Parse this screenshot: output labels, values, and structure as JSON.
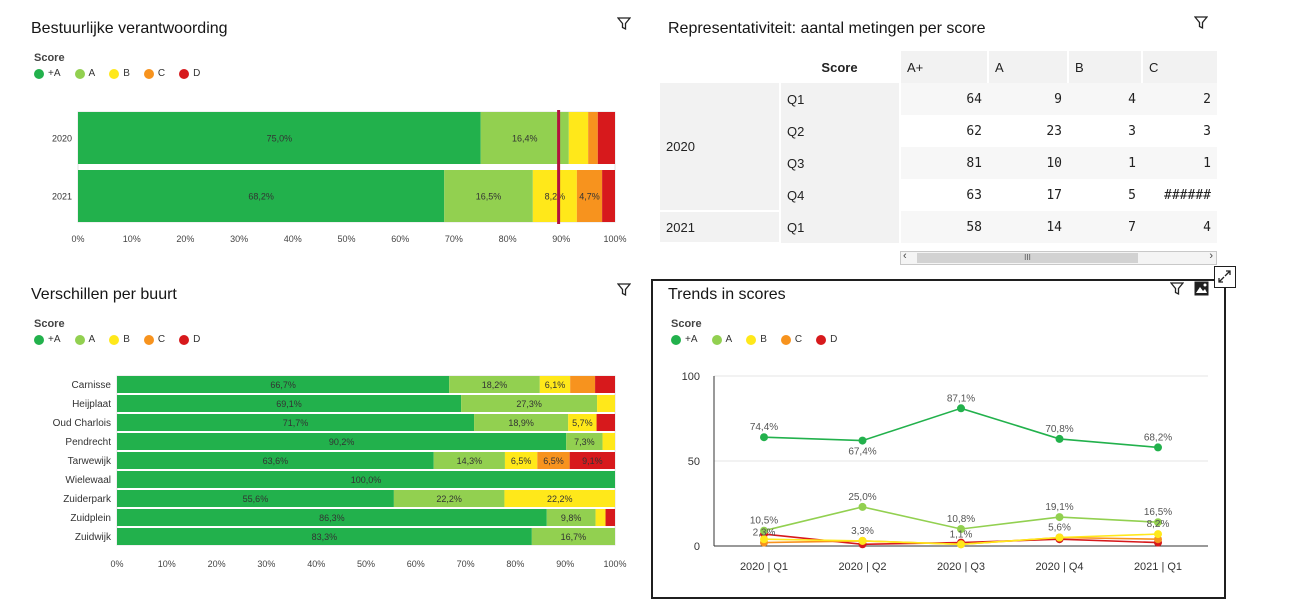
{
  "colors": {
    "A+": "#22b14c",
    "A": "#92d050",
    "B": "#ffe81a",
    "C": "#f7931e",
    "D": "#d7191c",
    "marker": "#b3123e"
  },
  "legend": {
    "title": "Score",
    "items": [
      {
        "label": "+A",
        "color": "#22b14c"
      },
      {
        "label": "A",
        "color": "#92d050"
      },
      {
        "label": "B",
        "color": "#ffe81a"
      },
      {
        "label": "C",
        "color": "#f7931e"
      },
      {
        "label": "D",
        "color": "#d7191c"
      }
    ]
  },
  "panel1": {
    "title": "Bestuurlijke verantwoording"
  },
  "panel2": {
    "title": "Representativiteit: aantal metingen per score"
  },
  "panel3": {
    "title": "Verschillen per buurt"
  },
  "panel4": {
    "title": "Trends in scores"
  },
  "rep_table": {
    "header": {
      "score": "Score",
      "cols": [
        "A+",
        "A",
        "B",
        "C"
      ]
    },
    "groups": [
      {
        "year": "2020",
        "rows": [
          {
            "q": "Q1",
            "vals": [
              "64",
              "9",
              "4",
              "2"
            ]
          },
          {
            "q": "Q2",
            "vals": [
              "62",
              "23",
              "3",
              "3"
            ]
          },
          {
            "q": "Q3",
            "vals": [
              "81",
              "10",
              "1",
              "1"
            ]
          },
          {
            "q": "Q4",
            "vals": [
              "63",
              "17",
              "5",
              "######"
            ]
          }
        ]
      },
      {
        "year": "2021",
        "rows": [
          {
            "q": "Q1",
            "vals": [
              "58",
              "14",
              "7",
              "4"
            ]
          }
        ]
      }
    ],
    "scroll_thumb": "III"
  },
  "chart_data": [
    {
      "type": "bar",
      "orientation": "horizontal-stacked",
      "title": "Bestuurlijke verantwoording",
      "categories": [
        "2020",
        "2021"
      ],
      "series": [
        {
          "name": "+A",
          "values": [
            75.0,
            68.2
          ]
        },
        {
          "name": "A",
          "values": [
            16.4,
            16.5
          ]
        },
        {
          "name": "B",
          "values": [
            3.6,
            8.2
          ]
        },
        {
          "name": "C",
          "values": [
            1.8,
            4.7
          ]
        },
        {
          "name": "D",
          "values": [
            3.2,
            2.4
          ]
        }
      ],
      "labels": [
        [
          "75,0%",
          "16,4%",
          "",
          "",
          ""
        ],
        [
          "68,2%",
          "16,5%",
          "8,2%",
          "4,7%",
          ""
        ]
      ],
      "reference_line": 89.5,
      "xlim": [
        0,
        100
      ],
      "xticks": [
        "0%",
        "10%",
        "20%",
        "30%",
        "40%",
        "50%",
        "60%",
        "70%",
        "80%",
        "90%",
        "100%"
      ]
    },
    {
      "type": "bar",
      "orientation": "horizontal-stacked",
      "title": "Verschillen per buurt",
      "categories": [
        "Carnisse",
        "Heijplaat",
        "Oud Charlois",
        "Pendrecht",
        "Tarwewijk",
        "Wielewaal",
        "Zuiderpark",
        "Zuidplein",
        "Zuidwijk"
      ],
      "series": [
        {
          "name": "+A",
          "values": [
            66.7,
            69.1,
            71.7,
            90.2,
            63.6,
            100.0,
            55.6,
            86.3,
            83.3
          ]
        },
        {
          "name": "A",
          "values": [
            18.2,
            27.3,
            18.9,
            7.3,
            14.3,
            0,
            22.2,
            9.8,
            16.7
          ]
        },
        {
          "name": "B",
          "values": [
            6.1,
            3.6,
            5.7,
            2.5,
            6.5,
            0,
            22.2,
            2.0,
            0
          ]
        },
        {
          "name": "C",
          "values": [
            5.0,
            0,
            0,
            0,
            6.5,
            0,
            0,
            0,
            0
          ]
        },
        {
          "name": "D",
          "values": [
            4.0,
            0,
            3.7,
            0,
            9.1,
            0,
            0,
            1.9,
            0
          ]
        }
      ],
      "labels": [
        [
          "66,7%",
          "18,2%",
          "6,1%",
          "",
          ""
        ],
        [
          "69,1%",
          "27,3%",
          "",
          "",
          ""
        ],
        [
          "71,7%",
          "18,9%",
          "5,7%",
          "",
          ""
        ],
        [
          "90,2%",
          "7,3%",
          "",
          "",
          ""
        ],
        [
          "63,6%",
          "14,3%",
          "6,5%",
          "6,5%",
          "9,1%"
        ],
        [
          "100,0%",
          "",
          "",
          "",
          ""
        ],
        [
          "55,6%",
          "22,2%",
          "22,2%",
          "",
          ""
        ],
        [
          "86,3%",
          "9,8%",
          "",
          "",
          ""
        ],
        [
          "83,3%",
          "16,7%",
          "",
          "",
          ""
        ]
      ],
      "xlim": [
        0,
        100
      ],
      "xticks": [
        "0%",
        "10%",
        "20%",
        "30%",
        "40%",
        "50%",
        "60%",
        "70%",
        "80%",
        "90%",
        "100%"
      ]
    },
    {
      "type": "line",
      "title": "Trends in scores",
      "categories": [
        "2020 | Q1",
        "2020 | Q2",
        "2020 | Q3",
        "2020 | Q4",
        "2021 | Q1"
      ],
      "ylim": [
        0,
        100
      ],
      "yticks": [
        "0",
        "50",
        "100"
      ],
      "series": [
        {
          "name": "+A",
          "values": [
            64,
            62,
            81,
            63,
            58
          ],
          "labels": [
            "74,4%",
            "67,4%",
            "87,1%",
            "70,8%",
            "68,2%"
          ]
        },
        {
          "name": "A",
          "values": [
            9,
            23,
            10,
            17,
            14
          ],
          "labels": [
            "10,5%",
            "25,0%",
            "10,8%",
            "19,1%",
            "16,5%"
          ]
        },
        {
          "name": "B",
          "values": [
            4,
            3,
            1,
            5,
            7
          ],
          "labels": [
            "",
            "3,3%",
            "1,1%",
            "5,6%",
            "8,2%"
          ]
        },
        {
          "name": "C",
          "values": [
            2,
            3,
            1,
            5,
            4
          ],
          "labels": [
            "2,3%",
            "",
            "",
            "",
            ""
          ]
        },
        {
          "name": "D",
          "values": [
            7,
            1,
            2,
            4,
            2
          ],
          "labels": [
            "",
            "",
            "",
            "",
            ""
          ]
        }
      ]
    }
  ]
}
